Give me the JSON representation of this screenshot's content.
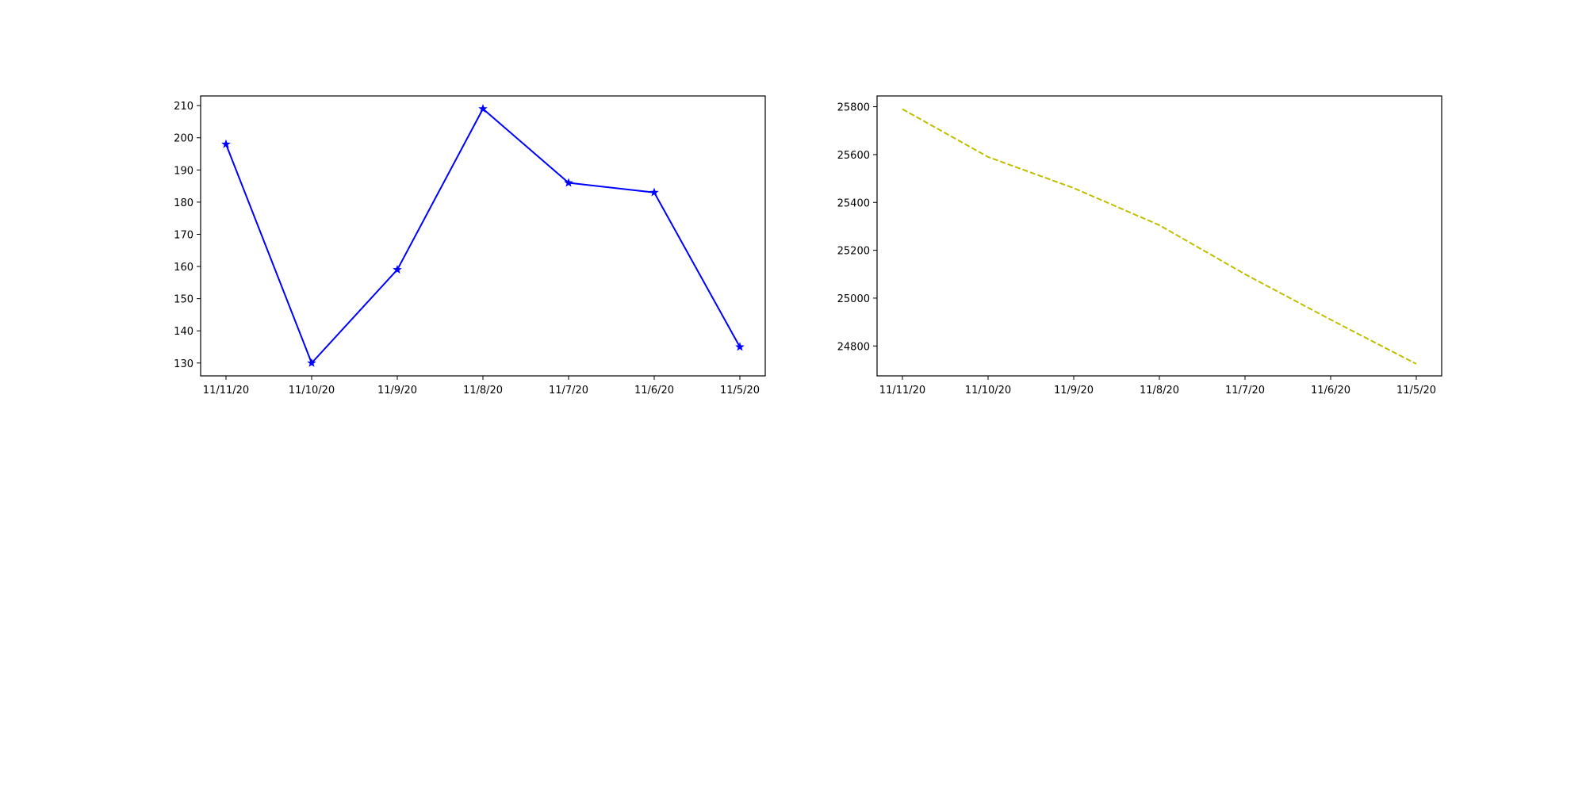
{
  "chart_data": [
    {
      "type": "line",
      "categories": [
        "11/11/20",
        "11/10/20",
        "11/9/20",
        "11/8/20",
        "11/7/20",
        "11/6/20",
        "11/5/20"
      ],
      "series": [
        {
          "values": [
            198,
            130,
            159,
            209,
            186,
            183,
            135
          ],
          "color": "#0000ff",
          "line_style": "solid",
          "marker": "star"
        }
      ],
      "yticks": [
        130,
        140,
        150,
        160,
        170,
        180,
        190,
        200,
        210
      ],
      "ylim": [
        126,
        213
      ],
      "grid": false
    },
    {
      "type": "line",
      "categories": [
        "11/11/20",
        "11/10/20",
        "11/9/20",
        "11/8/20",
        "11/7/20",
        "11/6/20",
        "11/5/20"
      ],
      "series": [
        {
          "values": [
            25790,
            25590,
            25460,
            25305,
            25100,
            24910,
            24725
          ],
          "color": "#bfbf00",
          "line_style": "dashed",
          "marker": "none"
        }
      ],
      "yticks": [
        24800,
        25000,
        25200,
        25400,
        25600,
        25800
      ],
      "ylim": [
        24675,
        25845
      ],
      "grid": false
    }
  ]
}
